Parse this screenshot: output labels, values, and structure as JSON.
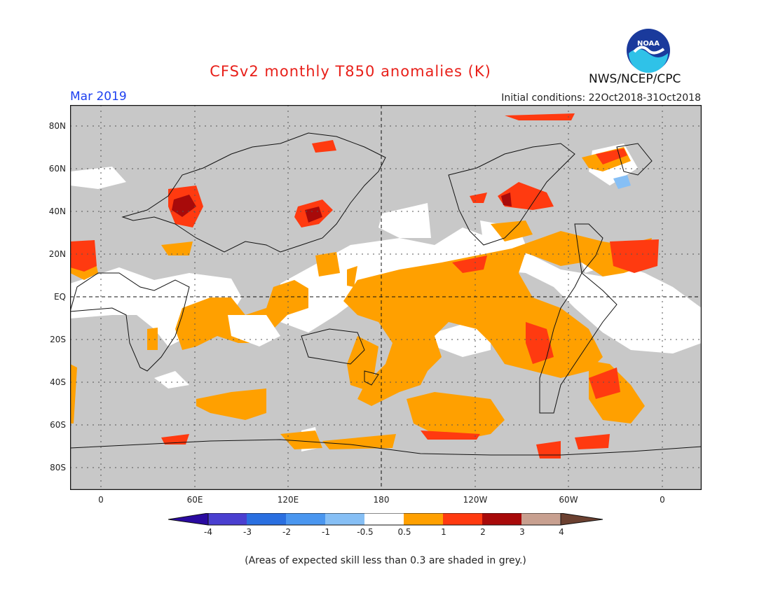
{
  "header": {
    "title": "CFSv2 monthly T850 anomalies (K)",
    "target_month": "Mar 2019",
    "initial_conditions": "Initial conditions: 22Oct2018-31Oct2018",
    "organization": "NWS/NCEP/CPC",
    "logo_text": "NOAA"
  },
  "map": {
    "lat_labels": [
      "80N",
      "60N",
      "40N",
      "20N",
      "EQ",
      "20S",
      "40S",
      "60S",
      "80S"
    ],
    "lon_labels": [
      "0",
      "60E",
      "120E",
      "180",
      "120W",
      "60W",
      "0"
    ],
    "skill_mask_color": "#c8c8c8"
  },
  "colorbar": {
    "labels": [
      "-4",
      "-3",
      "-2",
      "-1",
      "-0.5",
      "0.5",
      "1",
      "2",
      "3",
      "4"
    ],
    "colors": [
      "#2a0aa0",
      "#4a3fd0",
      "#2a6fe0",
      "#4a96ef",
      "#86bff5",
      "#ffffff",
      "#ffa000",
      "#ff3a10",
      "#a80a0a",
      "#c8a090",
      "#6b4030"
    ]
  },
  "footnote": "(Areas of expected skill less than 0.3 are shaded in grey.)"
}
